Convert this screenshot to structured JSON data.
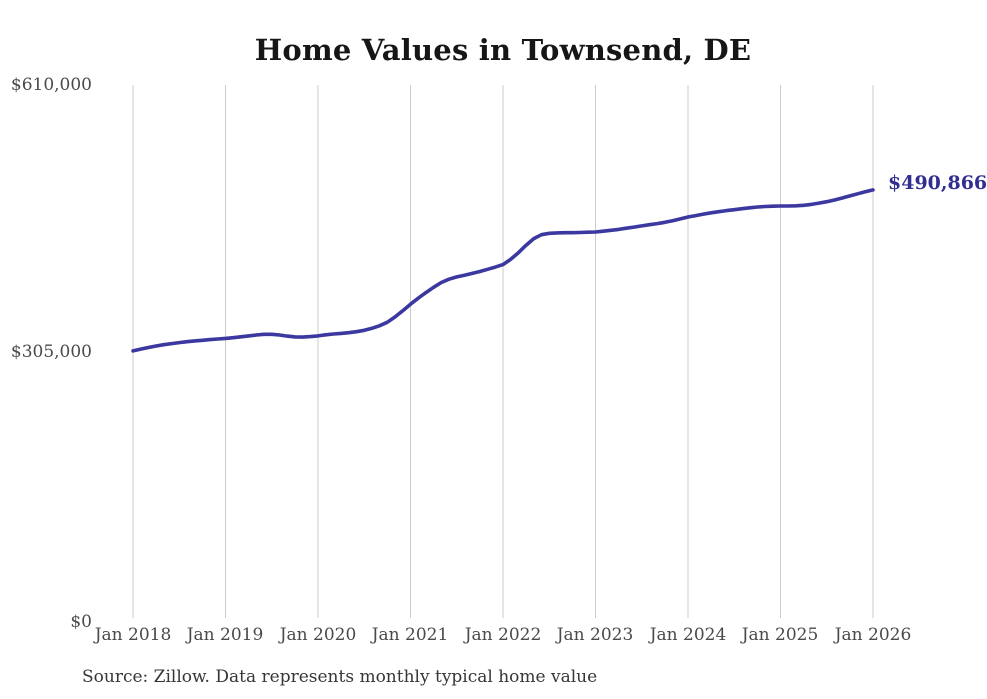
{
  "title": "Home Values in Townsend, DE",
  "source_note": "Source: Zillow. Data represents monthly typical home value",
  "end_label": "$490,866",
  "colors": {
    "background": "#ffffff",
    "title_text": "#161616",
    "axis_text": "#4a4a4a",
    "grid": "#cccccc",
    "line": "#3b38a0",
    "end_label_text": "#312e90",
    "source_text": "#363636"
  },
  "chart_data": {
    "type": "line",
    "title": "Home Values in Townsend, DE",
    "xlabel": "",
    "ylabel": "",
    "ylim": [
      0,
      610000
    ],
    "y_tick_labels": [
      "$610,000",
      "$305,000",
      "$0"
    ],
    "x_tick_labels": [
      "Jan 2018",
      "Jan 2019",
      "Jan 2020",
      "Jan 2021",
      "Jan 2022",
      "Jan 2023",
      "Jan 2024",
      "Jan 2025",
      "Jan 2026"
    ],
    "grid": "vertical-only",
    "legend": "none",
    "frequency": "monthly",
    "x_start": "Jan 2018",
    "x_end": "Jan 2026",
    "final_value": 490866,
    "final_value_label": "$490,866",
    "series": [
      {
        "name": "Typical home value",
        "values": [
          308000,
          310000,
          311800,
          313500,
          315000,
          316300,
          317400,
          318400,
          319300,
          320000,
          320800,
          321500,
          322200,
          323000,
          324000,
          325000,
          326000,
          326800,
          326800,
          326000,
          324800,
          323800,
          323600,
          324200,
          325000,
          326200,
          327200,
          327800,
          328600,
          329800,
          331400,
          333600,
          336600,
          340600,
          346600,
          353600,
          361000,
          367800,
          374200,
          380200,
          385600,
          389400,
          392000,
          394000,
          396000,
          398200,
          400600,
          403200,
          406000,
          412000,
          419500,
          428000,
          435500,
          440000,
          441500,
          442000,
          442200,
          442200,
          442500,
          442800,
          443000,
          443900,
          444900,
          446000,
          447300,
          448600,
          450000,
          451300,
          452600,
          454000,
          455900,
          457900,
          460000,
          461700,
          463300,
          464800,
          466100,
          467300,
          468400,
          469500,
          470500,
          471400,
          472000,
          472300,
          472500,
          472600,
          472800,
          473400,
          474400,
          475800,
          477400,
          479400,
          481600,
          484000,
          486400,
          488700,
          490866
        ]
      }
    ]
  }
}
